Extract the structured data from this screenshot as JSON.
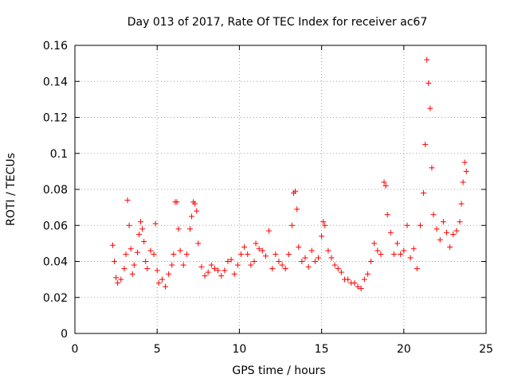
{
  "chart_data": {
    "type": "scatter",
    "title": "Day 013 of 2017, Rate Of TEC Index for receiver ac67",
    "xlabel": "GPS time / hours",
    "ylabel": "ROTI / TECUs",
    "xlim": [
      0,
      25
    ],
    "ylim": [
      0,
      0.16
    ],
    "xticks": [
      0,
      5,
      10,
      15,
      20,
      25
    ],
    "xtick_labels": [
      "0",
      "5",
      "10",
      "15",
      "20",
      "25"
    ],
    "yticks": [
      0,
      0.02,
      0.04,
      0.06,
      0.08,
      0.1,
      0.12,
      0.14,
      0.16
    ],
    "ytick_labels": [
      "0",
      "0.02",
      "0.04",
      "0.06",
      "0.08",
      "0.1",
      "0.12",
      "0.14",
      "0.16"
    ],
    "grid": true,
    "marker": "+",
    "color": "#ff0000",
    "series": [
      {
        "name": "ROTI",
        "x": [
          2.3,
          2.4,
          2.5,
          2.6,
          2.8,
          3.0,
          3.1,
          3.2,
          3.3,
          3.4,
          3.5,
          3.6,
          3.8,
          3.9,
          4.0,
          4.1,
          4.2,
          4.3,
          4.4,
          4.6,
          4.8,
          4.9,
          5.0,
          5.1,
          5.3,
          5.5,
          5.7,
          5.9,
          6.0,
          6.1,
          6.2,
          6.3,
          6.4,
          6.6,
          6.8,
          7.0,
          7.1,
          7.2,
          7.3,
          7.4,
          7.5,
          7.7,
          7.9,
          8.1,
          8.3,
          8.5,
          8.7,
          8.9,
          9.1,
          9.3,
          9.5,
          9.7,
          9.9,
          10.1,
          10.3,
          10.5,
          10.7,
          10.9,
          11.0,
          11.2,
          11.4,
          11.6,
          11.8,
          12.0,
          12.2,
          12.4,
          12.6,
          12.8,
          13.0,
          13.2,
          13.3,
          13.4,
          13.5,
          13.6,
          13.8,
          14.0,
          14.2,
          14.4,
          14.6,
          14.8,
          15.0,
          15.1,
          15.2,
          15.4,
          15.6,
          15.8,
          16.0,
          16.2,
          16.4,
          16.6,
          16.8,
          17.0,
          17.2,
          17.4,
          17.6,
          17.8,
          18.0,
          18.2,
          18.4,
          18.6,
          18.8,
          18.9,
          19.0,
          19.2,
          19.4,
          19.6,
          19.8,
          20.0,
          20.2,
          20.4,
          20.6,
          20.8,
          21.0,
          21.2,
          21.3,
          21.4,
          21.5,
          21.6,
          21.7,
          21.8,
          22.0,
          22.2,
          22.4,
          22.6,
          22.8,
          23.0,
          23.2,
          23.4,
          23.5,
          23.6,
          23.7,
          23.8
        ],
        "y": [
          0.049,
          0.04,
          0.031,
          0.028,
          0.03,
          0.036,
          0.044,
          0.074,
          0.06,
          0.047,
          0.033,
          0.038,
          0.045,
          0.055,
          0.062,
          0.058,
          0.051,
          0.04,
          0.036,
          0.046,
          0.044,
          0.061,
          0.035,
          0.028,
          0.03,
          0.026,
          0.033,
          0.038,
          0.044,
          0.073,
          0.073,
          0.058,
          0.046,
          0.038,
          0.044,
          0.058,
          0.065,
          0.073,
          0.072,
          0.068,
          0.05,
          0.037,
          0.032,
          0.034,
          0.038,
          0.036,
          0.035,
          0.032,
          0.035,
          0.04,
          0.041,
          0.033,
          0.038,
          0.044,
          0.048,
          0.044,
          0.038,
          0.04,
          0.05,
          0.047,
          0.046,
          0.043,
          0.057,
          0.036,
          0.044,
          0.04,
          0.038,
          0.036,
          0.044,
          0.06,
          0.078,
          0.079,
          0.069,
          0.048,
          0.04,
          0.042,
          0.037,
          0.046,
          0.04,
          0.042,
          0.054,
          0.062,
          0.06,
          0.046,
          0.042,
          0.038,
          0.036,
          0.034,
          0.03,
          0.03,
          0.028,
          0.028,
          0.026,
          0.025,
          0.03,
          0.033,
          0.04,
          0.05,
          0.046,
          0.044,
          0.084,
          0.082,
          0.066,
          0.056,
          0.044,
          0.05,
          0.044,
          0.046,
          0.06,
          0.042,
          0.047,
          0.036,
          0.06,
          0.078,
          0.105,
          0.152,
          0.139,
          0.125,
          0.092,
          0.066,
          0.058,
          0.052,
          0.062,
          0.056,
          0.048,
          0.055,
          0.057,
          0.062,
          0.072,
          0.084,
          0.095,
          0.09
        ]
      }
    ]
  }
}
